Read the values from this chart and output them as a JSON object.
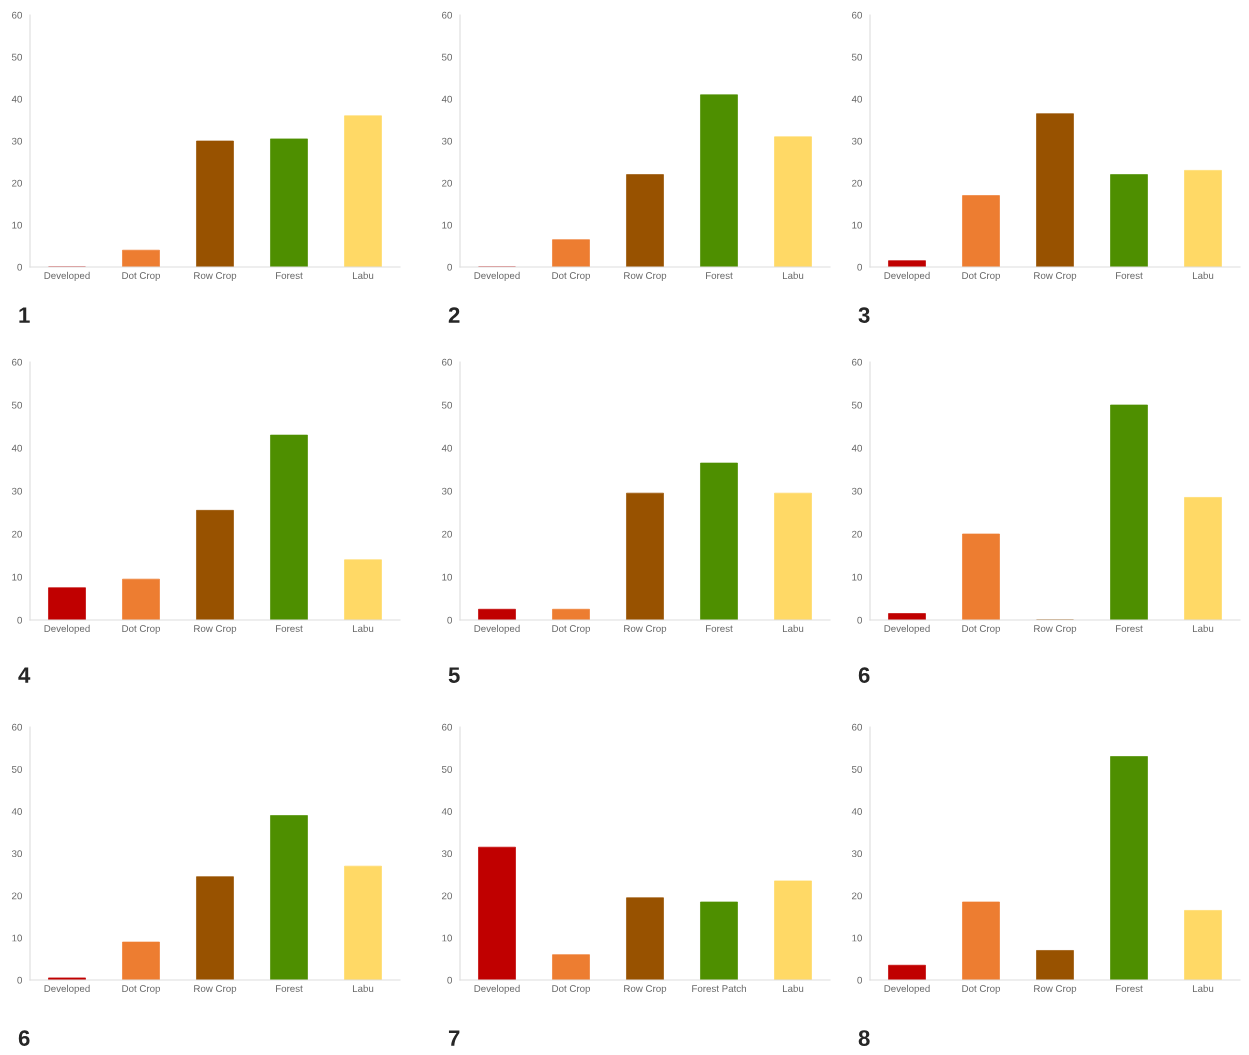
{
  "chart_data": [
    {
      "type": "bar",
      "title": "1",
      "categories": [
        "Developed",
        "Dot Crop",
        "Row Crop",
        "Forest",
        "Labu"
      ],
      "values": [
        0,
        4,
        30,
        30.5,
        36
      ],
      "colors": [
        "#c00000",
        "#ed7d31",
        "#985200",
        "#4e8f00",
        "#ffd966"
      ],
      "ylim": [
        0,
        60
      ],
      "yticks": [
        0,
        10,
        20,
        30,
        40,
        50,
        60
      ]
    },
    {
      "type": "bar",
      "title": "2",
      "categories": [
        "Developed",
        "Dot Crop",
        "Row Crop",
        "Forest",
        "Labu"
      ],
      "values": [
        0,
        6.5,
        22,
        41,
        31
      ],
      "colors": [
        "#c00000",
        "#ed7d31",
        "#985200",
        "#4e8f00",
        "#ffd966"
      ],
      "ylim": [
        0,
        60
      ],
      "yticks": [
        0,
        10,
        20,
        30,
        40,
        50,
        60
      ]
    },
    {
      "type": "bar",
      "title": "3",
      "categories": [
        "Developed",
        "Dot Crop",
        "Row Crop",
        "Forest",
        "Labu"
      ],
      "values": [
        1.5,
        17,
        36.5,
        22,
        23
      ],
      "colors": [
        "#c00000",
        "#ed7d31",
        "#985200",
        "#4e8f00",
        "#ffd966"
      ],
      "ylim": [
        0,
        60
      ],
      "yticks": [
        0,
        10,
        20,
        30,
        40,
        50,
        60
      ]
    },
    {
      "type": "bar",
      "title": "4",
      "categories": [
        "Developed",
        "Dot Crop",
        "Row Crop",
        "Forest",
        "Labu"
      ],
      "values": [
        7.5,
        9.5,
        25.5,
        43,
        14
      ],
      "colors": [
        "#c00000",
        "#ed7d31",
        "#985200",
        "#4e8f00",
        "#ffd966"
      ],
      "ylim": [
        0,
        60
      ],
      "yticks": [
        0,
        10,
        20,
        30,
        40,
        50,
        60
      ]
    },
    {
      "type": "bar",
      "title": "5",
      "categories": [
        "Developed",
        "Dot Crop",
        "Row Crop",
        "Forest",
        "Labu"
      ],
      "values": [
        2.5,
        2.5,
        29.5,
        36.5,
        29.5
      ],
      "colors": [
        "#c00000",
        "#ed7d31",
        "#985200",
        "#4e8f00",
        "#ffd966"
      ],
      "ylim": [
        0,
        60
      ],
      "yticks": [
        0,
        10,
        20,
        30,
        40,
        50,
        60
      ]
    },
    {
      "type": "bar",
      "title": "6",
      "categories": [
        "Developed",
        "Dot Crop",
        "Row Crop",
        "Forest",
        "Labu"
      ],
      "values": [
        1.5,
        20,
        0,
        50,
        28.5
      ],
      "colors": [
        "#c00000",
        "#ed7d31",
        "#985200",
        "#4e8f00",
        "#ffd966"
      ],
      "ylim": [
        0,
        60
      ],
      "yticks": [
        0,
        10,
        20,
        30,
        40,
        50,
        60
      ]
    },
    {
      "type": "bar",
      "title": "6",
      "categories": [
        "Developed",
        "Dot Crop",
        "Row Crop",
        "Forest",
        "Labu"
      ],
      "values": [
        0.5,
        9,
        24.5,
        39,
        27
      ],
      "colors": [
        "#c00000",
        "#ed7d31",
        "#985200",
        "#4e8f00",
        "#ffd966"
      ],
      "ylim": [
        0,
        60
      ],
      "yticks": [
        0,
        10,
        20,
        30,
        40,
        50,
        60
      ]
    },
    {
      "type": "bar",
      "title": "7",
      "categories": [
        "Developed",
        "Dot Crop",
        "Row Crop",
        "Forest Patch",
        "Labu"
      ],
      "values": [
        31.5,
        6,
        19.5,
        18.5,
        23.5
      ],
      "colors": [
        "#c00000",
        "#ed7d31",
        "#985200",
        "#4e8f00",
        "#ffd966"
      ],
      "ylim": [
        0,
        60
      ],
      "yticks": [
        0,
        10,
        20,
        30,
        40,
        50,
        60
      ]
    },
    {
      "type": "bar",
      "title": "8",
      "categories": [
        "Developed",
        "Dot Crop",
        "Row Crop",
        "Forest",
        "Labu"
      ],
      "values": [
        3.5,
        18.5,
        7,
        53,
        16.5
      ],
      "colors": [
        "#c00000",
        "#ed7d31",
        "#985200",
        "#4e8f00",
        "#ffd966"
      ],
      "ylim": [
        0,
        60
      ],
      "yticks": [
        0,
        10,
        20,
        30,
        40,
        50,
        60
      ]
    }
  ]
}
